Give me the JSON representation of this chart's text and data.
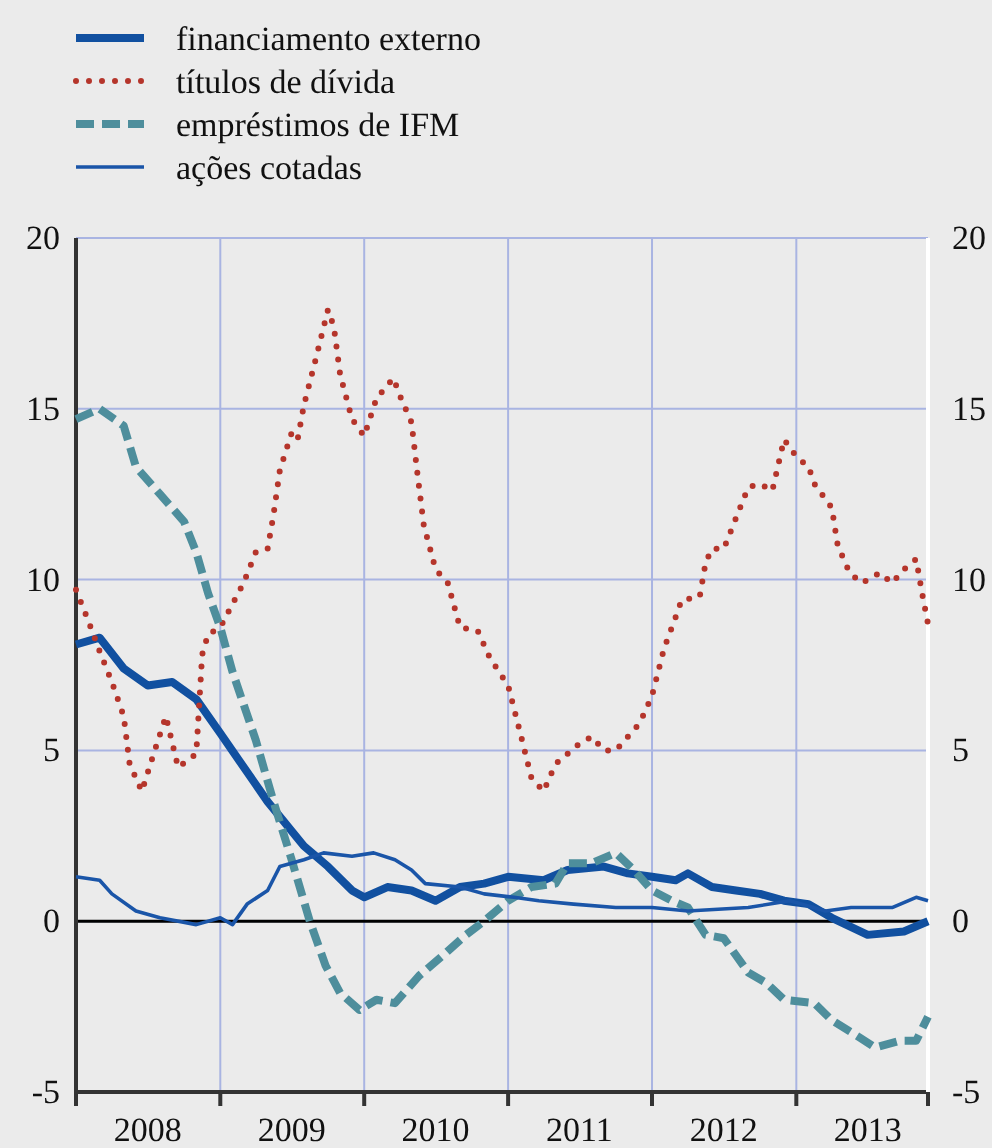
{
  "chart_data": {
    "type": "line",
    "legend": "top left",
    "grid": true,
    "tick_labels": "xy",
    "xlim": [
      "2008-01",
      "2013-12"
    ],
    "xticks": [
      {
        "value": "2008-01",
        "label": null
      },
      {
        "value": "2009-01",
        "label": null
      },
      {
        "value": "2010-01",
        "label": null
      },
      {
        "value": "2011-01",
        "label": null
      },
      {
        "value": "2012-01",
        "label": null
      },
      {
        "value": "2013-01",
        "label": null
      },
      {
        "value": "2013-12",
        "label": null
      },
      {
        "value": "2008-07",
        "label": "2008"
      },
      {
        "value": "2009-07",
        "label": "2009"
      },
      {
        "value": "2010-07",
        "label": "2010"
      },
      {
        "value": "2011-07",
        "label": "2011"
      },
      {
        "value": "2012-07",
        "label": "2012"
      },
      {
        "value": "2013-07",
        "label": "2013"
      }
    ],
    "ylim": [
      -5,
      20
    ],
    "yticks": [
      -5,
      0,
      5,
      10,
      15,
      20
    ],
    "y2lim": [
      -5,
      20
    ],
    "y2ticks": [
      -5,
      0,
      5,
      10,
      15,
      20
    ],
    "ref_lines": [
      {
        "axis": "y",
        "value": 0,
        "color": "#000000"
      }
    ],
    "series": [
      {
        "name": "financiamento externo",
        "color": "#1150a0",
        "line_style": "solid",
        "x": [
          "2008-01",
          "2008-03",
          "2008-05",
          "2008-07",
          "2008-09",
          "2008-11",
          "2009-01",
          "2009-04",
          "2009-05",
          "2009-08",
          "2009-10",
          "2009-12",
          "2010-01",
          "2010-03",
          "2010-05",
          "2010-07",
          "2010-09",
          "2010-11",
          "2011-01",
          "2011-04",
          "2011-06",
          "2011-09",
          "2011-11",
          "2012-01",
          "2012-03",
          "2012-04",
          "2012-06",
          "2012-08",
          "2012-10",
          "2012-12",
          "2013-02",
          "2013-04",
          "2013-07",
          "2013-10",
          "2013-12"
        ],
        "values": [
          8.1,
          8.3,
          7.4,
          6.9,
          7.0,
          6.5,
          5.5,
          4.0,
          3.5,
          2.2,
          1.6,
          0.9,
          0.7,
          1.0,
          0.9,
          0.6,
          1.0,
          1.1,
          1.3,
          1.2,
          1.5,
          1.6,
          1.4,
          1.3,
          1.2,
          1.4,
          1.0,
          0.9,
          0.8,
          0.6,
          0.5,
          0.1,
          -0.4,
          -0.3,
          0.0
        ]
      },
      {
        "name": "títulos de dívida",
        "color": "#b5352b",
        "line_style": "dotted",
        "x": [
          "2008-01",
          "2008-02",
          "2008-03",
          "2008-04",
          "2008-05",
          "2008-05-16",
          "2008-06-16",
          "2008-07-16",
          "2008-08-16",
          "2008-09-16",
          "2008-11",
          "2008-11-16",
          "2008-12",
          "2009-01",
          "2009-03",
          "2009-04",
          "2009-05",
          "2009-05-16",
          "2009-06",
          "2009-07",
          "2009-07-16",
          "2009-08",
          "2009-09",
          "2009-10",
          "2009-10-16",
          "2009-11",
          "2009-12",
          "2010-01",
          "2010-02",
          "2010-03-16",
          "2010-04",
          "2010-05",
          "2010-05-16",
          "2010-06",
          "2010-07",
          "2010-08",
          "2010-09",
          "2010-10-16",
          "2010-11-16",
          "2011-01",
          "2011-02",
          "2011-03",
          "2011-04",
          "2011-05",
          "2011-07",
          "2011-08",
          "2011-09",
          "2011-10",
          "2011-12",
          "2012-01",
          "2012-02",
          "2012-03",
          "2012-03-16",
          "2012-05",
          "2012-05-16",
          "2012-06",
          "2012-07",
          "2012-08",
          "2012-09",
          "2012-10",
          "2012-11",
          "2012-12",
          "2013-01",
          "2013-02",
          "2013-02-16",
          "2013-04",
          "2013-04-16",
          "2013-05-16",
          "2013-06-16",
          "2013-08",
          "2013-09",
          "2013-10",
          "2013-11",
          "2013-11-16",
          "2013-12"
        ],
        "values": [
          9.7,
          8.8,
          7.9,
          7.0,
          6.0,
          4.6,
          3.8,
          4.9,
          6.0,
          4.5,
          4.9,
          7.8,
          8.4,
          8.6,
          9.9,
          10.8,
          10.9,
          11.9,
          13.2,
          14.3,
          14.1,
          15.1,
          16.5,
          17.9,
          17.4,
          16.0,
          14.7,
          14.2,
          15.3,
          15.9,
          15.4,
          14.6,
          13.1,
          11.6,
          10.3,
          9.9,
          8.6,
          8.5,
          7.7,
          6.9,
          5.5,
          4.2,
          3.8,
          4.6,
          5.2,
          5.4,
          5.0,
          5.0,
          5.8,
          6.6,
          8.0,
          8.9,
          9.4,
          9.5,
          10.5,
          10.9,
          10.9,
          11.8,
          12.7,
          12.8,
          12.6,
          14.1,
          13.6,
          13.3,
          12.8,
          12.1,
          11.0,
          10.2,
          9.9,
          10.2,
          9.9,
          10.3,
          10.6,
          9.6,
          8.7
        ]
      },
      {
        "name": "empréstimos de IFM",
        "color": "#4e8e9c",
        "line_style": "dashed",
        "x": [
          "2008-01",
          "2008-03",
          "2008-05",
          "2008-06",
          "2008-08",
          "2008-10",
          "2008-11",
          "2008-12",
          "2009-01",
          "2009-02",
          "2009-04",
          "2009-05-16",
          "2009-07",
          "2009-08-16",
          "2009-09-25",
          "2009-11",
          "2009-12-20",
          "2010-02",
          "2010-03-20",
          "2010-05-20",
          "2010-07-20",
          "2010-09-16",
          "2010-11",
          "2011-01",
          "2011-03",
          "2011-05",
          "2011-06",
          "2011-08",
          "2011-10",
          "2011-11-16",
          "2012-01",
          "2012-02-20",
          "2012-04",
          "2012-05-16",
          "2012-07",
          "2012-09",
          "2012-10-16",
          "2012-12",
          "2013-02-16",
          "2013-04",
          "2013-06-10",
          "2013-07-20",
          "2013-09-20",
          "2013-11",
          "2013-12"
        ],
        "values": [
          14.7,
          15.0,
          14.5,
          13.3,
          12.5,
          11.7,
          10.8,
          9.6,
          8.6,
          7.3,
          5.3,
          3.5,
          1.8,
          0.0,
          -1.3,
          -2.1,
          -2.6,
          -2.3,
          -2.4,
          -1.6,
          -1.0,
          -0.4,
          0.0,
          0.6,
          1.0,
          1.1,
          1.7,
          1.7,
          2.0,
          1.5,
          0.9,
          0.6,
          0.4,
          -0.4,
          -0.5,
          -1.5,
          -1.8,
          -2.3,
          -2.4,
          -2.9,
          -3.4,
          -3.7,
          -3.5,
          -3.5,
          -2.8
        ]
      },
      {
        "name": "ações cotadas",
        "color": "#1a55a8",
        "line_style": "solid",
        "x": [
          "2008-01",
          "2008-03",
          "2008-04",
          "2008-06",
          "2008-08",
          "2008-11",
          "2009-01",
          "2009-02",
          "2009-03-10",
          "2009-05",
          "2009-06",
          "2009-08",
          "2009-09-20",
          "2009-12",
          "2010-01-25",
          "2010-03-20",
          "2010-05",
          "2010-06-05",
          "2010-09",
          "2010-11",
          "2011-01-16",
          "2011-03-20",
          "2011-06-16",
          "2011-10",
          "2012-01",
          "2012-04",
          "2012-09",
          "2012-12-16",
          "2013-03-16",
          "2013-05-20",
          "2013-09",
          "2013-11",
          "2013-12"
        ],
        "values": [
          1.3,
          1.2,
          0.8,
          0.3,
          0.1,
          -0.1,
          0.1,
          -0.1,
          0.5,
          0.9,
          1.6,
          1.8,
          2.0,
          1.9,
          2.0,
          1.8,
          1.5,
          1.1,
          1.0,
          0.8,
          0.7,
          0.6,
          0.5,
          0.4,
          0.4,
          0.3,
          0.4,
          0.6,
          0.3,
          0.4,
          0.4,
          0.7,
          0.6
        ]
      }
    ]
  }
}
